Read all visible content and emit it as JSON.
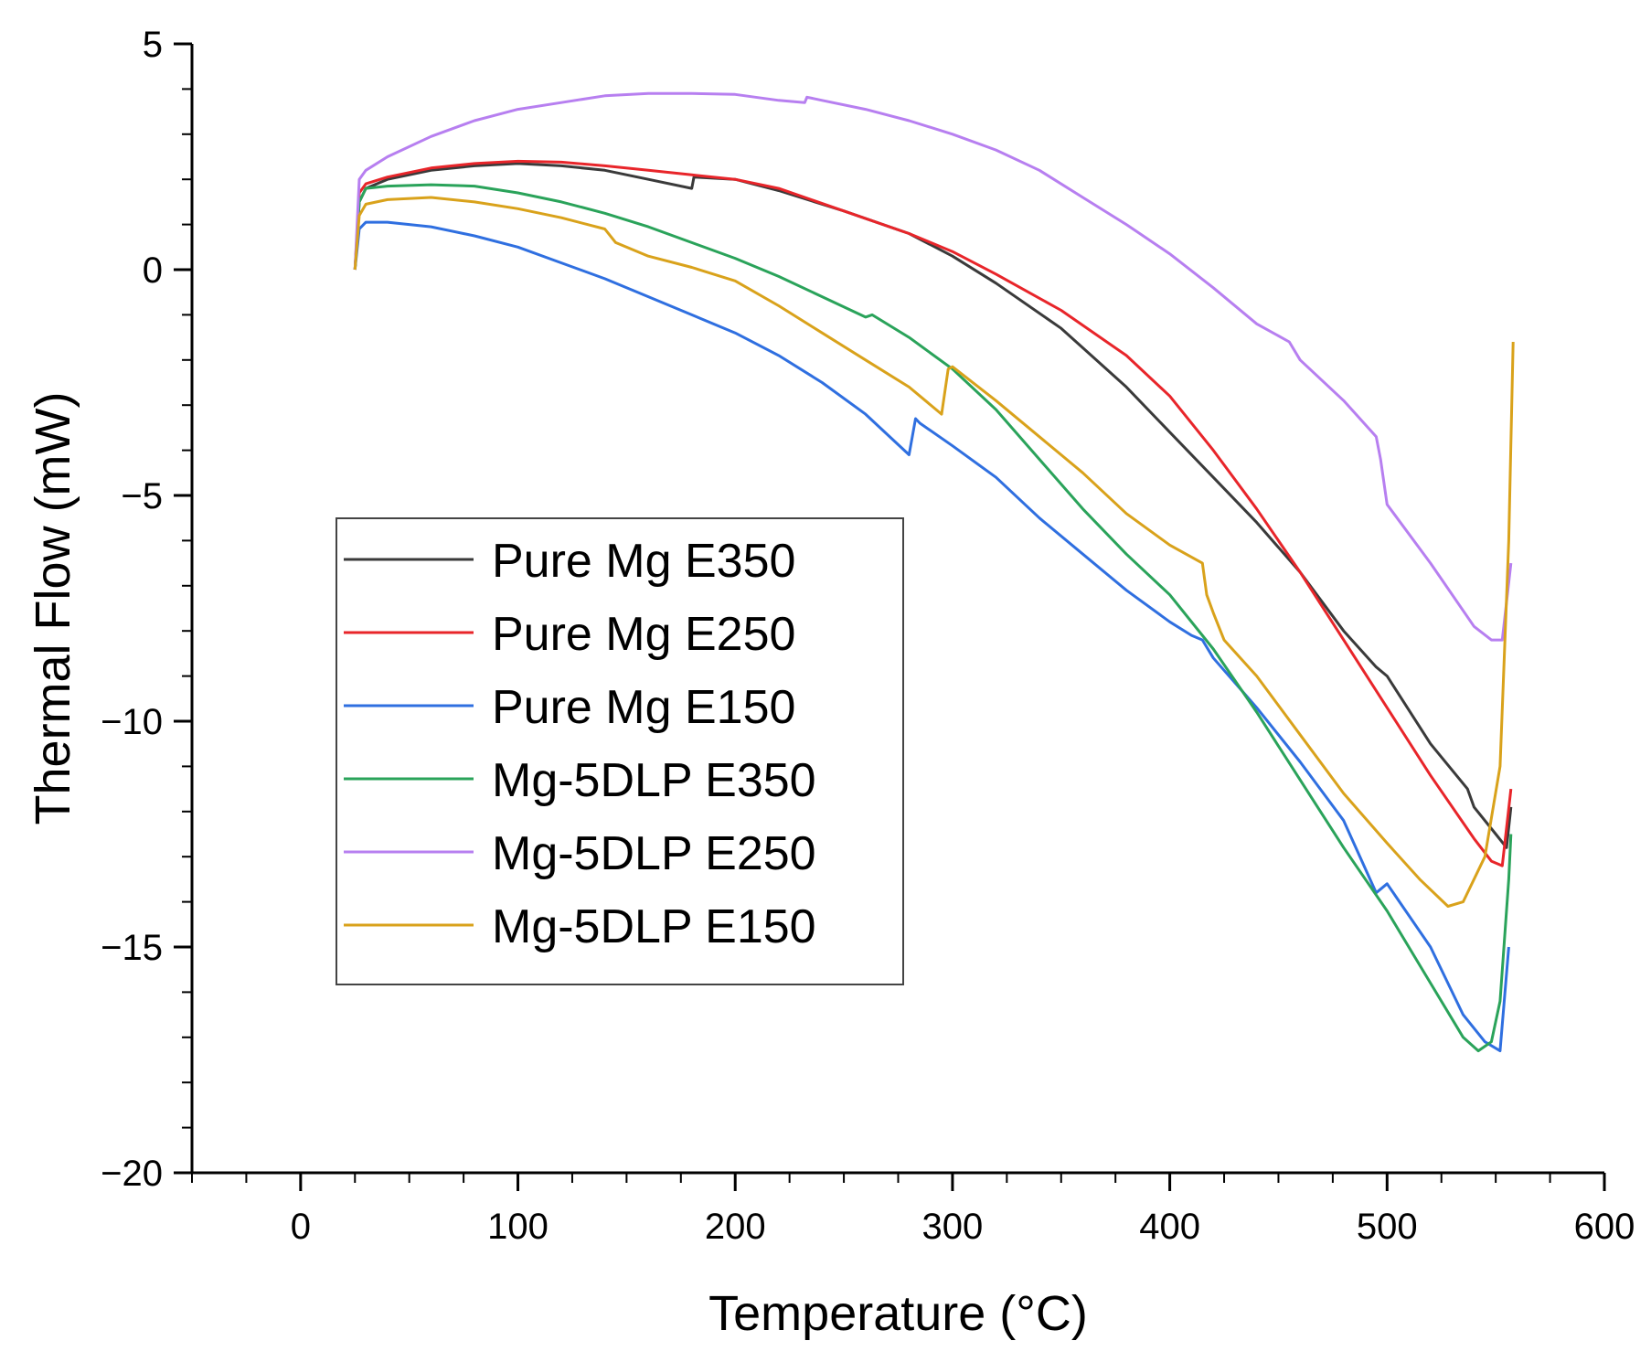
{
  "chart_data": {
    "type": "line",
    "title": "",
    "xlabel": "Temperature (°C)",
    "ylabel": "Thermal Flow (mW)",
    "xlim": [
      -50,
      600
    ],
    "ylim": [
      -20,
      5
    ],
    "x_ticks": [
      0,
      100,
      200,
      300,
      400,
      500,
      600
    ],
    "y_ticks": [
      5,
      0,
      -5,
      -10,
      -15,
      -20
    ],
    "x_tick_labels": [
      "0",
      "100",
      "200",
      "300",
      "400",
      "500",
      "600"
    ],
    "y_tick_labels": [
      "5",
      "0",
      "−5",
      "−10",
      "−15",
      "−20"
    ],
    "x_minor_step": 25,
    "y_minor_step": 1,
    "grid": false,
    "legend_position": "middle-left",
    "series": [
      {
        "name": "Pure Mg E350",
        "color": "#3a3a3a",
        "points": [
          [
            25,
            0
          ],
          [
            27,
            1.5
          ],
          [
            30,
            1.8
          ],
          [
            40,
            2.0
          ],
          [
            60,
            2.2
          ],
          [
            80,
            2.3
          ],
          [
            100,
            2.35
          ],
          [
            120,
            2.3
          ],
          [
            140,
            2.2
          ],
          [
            160,
            2.0
          ],
          [
            180,
            1.8
          ],
          [
            181,
            2.05
          ],
          [
            200,
            2.0
          ],
          [
            220,
            1.75
          ],
          [
            250,
            1.3
          ],
          [
            280,
            0.8
          ],
          [
            300,
            0.3
          ],
          [
            320,
            -0.3
          ],
          [
            350,
            -1.3
          ],
          [
            380,
            -2.6
          ],
          [
            400,
            -3.6
          ],
          [
            420,
            -4.6
          ],
          [
            440,
            -5.6
          ],
          [
            460,
            -6.7
          ],
          [
            480,
            -8.0
          ],
          [
            495,
            -8.8
          ],
          [
            500,
            -9.0
          ],
          [
            520,
            -10.5
          ],
          [
            537,
            -11.5
          ],
          [
            540,
            -11.9
          ],
          [
            550,
            -12.5
          ],
          [
            555,
            -12.8
          ],
          [
            557,
            -11.9
          ]
        ]
      },
      {
        "name": "Pure Mg E250",
        "color": "#e8252a",
        "points": [
          [
            25,
            0
          ],
          [
            27,
            1.7
          ],
          [
            30,
            1.9
          ],
          [
            40,
            2.05
          ],
          [
            60,
            2.25
          ],
          [
            80,
            2.35
          ],
          [
            100,
            2.4
          ],
          [
            120,
            2.38
          ],
          [
            140,
            2.3
          ],
          [
            160,
            2.2
          ],
          [
            180,
            2.1
          ],
          [
            200,
            2.0
          ],
          [
            220,
            1.8
          ],
          [
            250,
            1.3
          ],
          [
            280,
            0.8
          ],
          [
            300,
            0.4
          ],
          [
            320,
            -0.1
          ],
          [
            350,
            -0.9
          ],
          [
            380,
            -1.9
          ],
          [
            400,
            -2.8
          ],
          [
            420,
            -4.0
          ],
          [
            440,
            -5.3
          ],
          [
            460,
            -6.7
          ],
          [
            480,
            -8.2
          ],
          [
            500,
            -9.7
          ],
          [
            520,
            -11.2
          ],
          [
            540,
            -12.6
          ],
          [
            548,
            -13.1
          ],
          [
            553,
            -13.2
          ],
          [
            557,
            -11.5
          ]
        ]
      },
      {
        "name": "Pure Mg E150",
        "color": "#2f6fe0",
        "points": [
          [
            25,
            0
          ],
          [
            27,
            0.9
          ],
          [
            30,
            1.05
          ],
          [
            40,
            1.05
          ],
          [
            60,
            0.95
          ],
          [
            80,
            0.75
          ],
          [
            100,
            0.5
          ],
          [
            120,
            0.15
          ],
          [
            140,
            -0.2
          ],
          [
            160,
            -0.6
          ],
          [
            180,
            -1.0
          ],
          [
            200,
            -1.4
          ],
          [
            220,
            -1.9
          ],
          [
            240,
            -2.5
          ],
          [
            260,
            -3.2
          ],
          [
            280,
            -4.1
          ],
          [
            283,
            -3.3
          ],
          [
            285,
            -3.4
          ],
          [
            300,
            -3.9
          ],
          [
            320,
            -4.6
          ],
          [
            340,
            -5.5
          ],
          [
            360,
            -6.3
          ],
          [
            380,
            -7.1
          ],
          [
            400,
            -7.8
          ],
          [
            410,
            -8.1
          ],
          [
            415,
            -8.2
          ],
          [
            420,
            -8.6
          ],
          [
            440,
            -9.7
          ],
          [
            460,
            -10.9
          ],
          [
            480,
            -12.2
          ],
          [
            495,
            -13.8
          ],
          [
            500,
            -13.6
          ],
          [
            520,
            -15.0
          ],
          [
            535,
            -16.5
          ],
          [
            545,
            -17.1
          ],
          [
            552,
            -17.3
          ],
          [
            556,
            -15.0
          ]
        ]
      },
      {
        "name": "Mg-5DLP E350",
        "color": "#2aa35a",
        "points": [
          [
            25,
            0
          ],
          [
            27,
            1.5
          ],
          [
            30,
            1.8
          ],
          [
            40,
            1.85
          ],
          [
            60,
            1.88
          ],
          [
            80,
            1.85
          ],
          [
            100,
            1.7
          ],
          [
            120,
            1.5
          ],
          [
            140,
            1.25
          ],
          [
            160,
            0.95
          ],
          [
            180,
            0.6
          ],
          [
            200,
            0.25
          ],
          [
            220,
            -0.15
          ],
          [
            240,
            -0.6
          ],
          [
            260,
            -1.05
          ],
          [
            263,
            -1.0
          ],
          [
            280,
            -1.5
          ],
          [
            300,
            -2.2
          ],
          [
            320,
            -3.1
          ],
          [
            340,
            -4.2
          ],
          [
            360,
            -5.3
          ],
          [
            380,
            -6.3
          ],
          [
            400,
            -7.2
          ],
          [
            420,
            -8.4
          ],
          [
            440,
            -9.8
          ],
          [
            460,
            -11.3
          ],
          [
            480,
            -12.8
          ],
          [
            500,
            -14.2
          ],
          [
            520,
            -15.8
          ],
          [
            535,
            -17.0
          ],
          [
            542,
            -17.3
          ],
          [
            548,
            -17.1
          ],
          [
            552,
            -16.2
          ],
          [
            556,
            -13.5
          ],
          [
            557,
            -12.5
          ]
        ]
      },
      {
        "name": "Mg-5DLP E250",
        "color": "#b77ff0",
        "points": [
          [
            25,
            0
          ],
          [
            27,
            2.0
          ],
          [
            30,
            2.2
          ],
          [
            40,
            2.5
          ],
          [
            60,
            2.95
          ],
          [
            80,
            3.3
          ],
          [
            100,
            3.55
          ],
          [
            120,
            3.7
          ],
          [
            140,
            3.85
          ],
          [
            160,
            3.9
          ],
          [
            180,
            3.9
          ],
          [
            200,
            3.88
          ],
          [
            220,
            3.75
          ],
          [
            232,
            3.7
          ],
          [
            233,
            3.82
          ],
          [
            240,
            3.75
          ],
          [
            260,
            3.55
          ],
          [
            280,
            3.3
          ],
          [
            300,
            3.0
          ],
          [
            320,
            2.65
          ],
          [
            340,
            2.2
          ],
          [
            360,
            1.6
          ],
          [
            380,
            1.0
          ],
          [
            400,
            0.35
          ],
          [
            420,
            -0.4
          ],
          [
            440,
            -1.2
          ],
          [
            455,
            -1.6
          ],
          [
            460,
            -2.0
          ],
          [
            480,
            -2.9
          ],
          [
            495,
            -3.7
          ],
          [
            497,
            -4.2
          ],
          [
            500,
            -5.2
          ],
          [
            520,
            -6.5
          ],
          [
            540,
            -7.9
          ],
          [
            548,
            -8.2
          ],
          [
            553,
            -8.2
          ],
          [
            557,
            -6.5
          ]
        ]
      },
      {
        "name": "Mg-5DLP E150",
        "color": "#d9a21b",
        "points": [
          [
            25,
            0
          ],
          [
            27,
            1.2
          ],
          [
            30,
            1.45
          ],
          [
            40,
            1.55
          ],
          [
            60,
            1.6
          ],
          [
            80,
            1.5
          ],
          [
            100,
            1.35
          ],
          [
            120,
            1.15
          ],
          [
            140,
            0.9
          ],
          [
            145,
            0.6
          ],
          [
            160,
            0.3
          ],
          [
            180,
            0.05
          ],
          [
            200,
            -0.25
          ],
          [
            220,
            -0.8
          ],
          [
            240,
            -1.4
          ],
          [
            260,
            -2.0
          ],
          [
            280,
            -2.6
          ],
          [
            295,
            -3.2
          ],
          [
            298,
            -2.2
          ],
          [
            300,
            -2.15
          ],
          [
            320,
            -2.9
          ],
          [
            340,
            -3.7
          ],
          [
            360,
            -4.5
          ],
          [
            380,
            -5.4
          ],
          [
            400,
            -6.1
          ],
          [
            415,
            -6.5
          ],
          [
            417,
            -7.2
          ],
          [
            420,
            -7.6
          ],
          [
            425,
            -8.2
          ],
          [
            440,
            -9.0
          ],
          [
            460,
            -10.3
          ],
          [
            480,
            -11.6
          ],
          [
            500,
            -12.7
          ],
          [
            515,
            -13.5
          ],
          [
            528,
            -14.1
          ],
          [
            535,
            -14.0
          ],
          [
            545,
            -13.0
          ],
          [
            552,
            -11.0
          ],
          [
            556,
            -6.0
          ],
          [
            558,
            -1.6
          ]
        ]
      }
    ]
  }
}
